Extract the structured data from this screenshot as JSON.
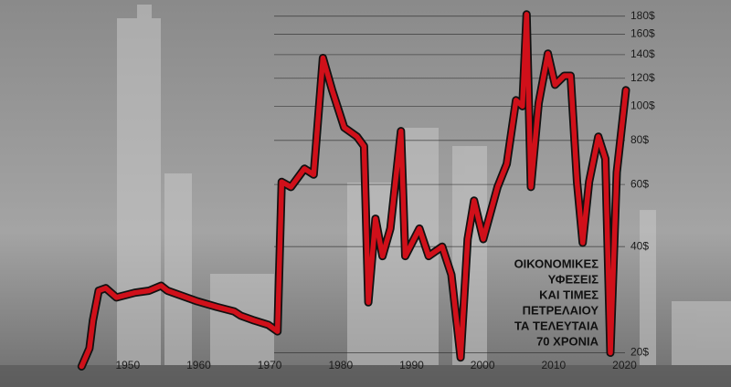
{
  "chart_data": {
    "type": "line",
    "title": [
      "ΟΙΚΟΝΟΜΙΚΕΣ",
      "ΥΦΕΣΕΙΣ",
      "ΚΑΙ ΤΙΜΕΣ",
      "ΠΕΤΡΕΛΑΙΟΥ",
      "ΤΑ ΤΕΛΕΥΤΑΙΑ",
      "70 ΧΡΟΝΙΑ"
    ],
    "log_scale": true,
    "grid": true,
    "color": "#d0101a",
    "x": [
      1943.5,
      1944.6,
      1945.1,
      1945.9,
      1946.9,
      1948.4,
      1951.0,
      1953.0,
      1954.7,
      1955.6,
      1959.8,
      1962.5,
      1965.0,
      1965.9,
      1967.8,
      1969.8,
      1971.1,
      1971.7,
      1973.0,
      1974.9,
      1976.2,
      1977.5,
      1978.8,
      1980.5,
      1982.3,
      1983.3,
      1983.9,
      1984.9,
      1985.9,
      1987.0,
      1988.5,
      1989.1,
      1991.1,
      1992.4,
      1994.3,
      1995.6,
      1996.9,
      1997.9,
      1998.8,
      2000.1,
      2002.1,
      2003.4,
      2004.7,
      2005.6,
      2006.2,
      2006.8,
      2007.9,
      2009.2,
      2010.2,
      2011.5,
      2012.4,
      2013.3,
      2014.1,
      2015.0,
      2016.3,
      2017.3,
      2018.0,
      2018.9,
      2020.2
    ],
    "values": [
      18.3,
      20.6,
      24.7,
      30,
      30.5,
      28.7,
      29.6,
      30,
      31,
      30,
      28,
      27,
      26.2,
      25.5,
      24.7,
      24,
      23,
      61,
      59,
      66.5,
      64,
      137,
      111,
      87,
      82,
      77,
      27.8,
      48,
      37.6,
      45,
      85,
      37.6,
      45,
      37.6,
      40,
      33.3,
      19.4,
      42,
      54,
      42,
      59,
      68.6,
      104,
      100,
      182,
      59,
      102,
      141,
      115,
      122,
      122,
      61,
      41,
      61,
      82,
      71,
      20,
      65,
      111
    ],
    "xlim": [
      1932,
      2035
    ],
    "ylim": [
      16,
      200
    ],
    "xticks": [
      1950,
      1960,
      1970,
      1980,
      1990,
      2000,
      2010,
      2020
    ],
    "yticks": [
      {
        "value": 20,
        "label": "20$"
      },
      {
        "value": 40,
        "label": "40$"
      },
      {
        "value": 60,
        "label": "60$"
      },
      {
        "value": 80,
        "label": "80$"
      },
      {
        "value": 100,
        "label": "100$"
      },
      {
        "value": 120,
        "label": "120$"
      },
      {
        "value": 140,
        "label": "140$"
      },
      {
        "value": 160,
        "label": "160$"
      },
      {
        "value": 180,
        "label": "180$"
      }
    ]
  }
}
